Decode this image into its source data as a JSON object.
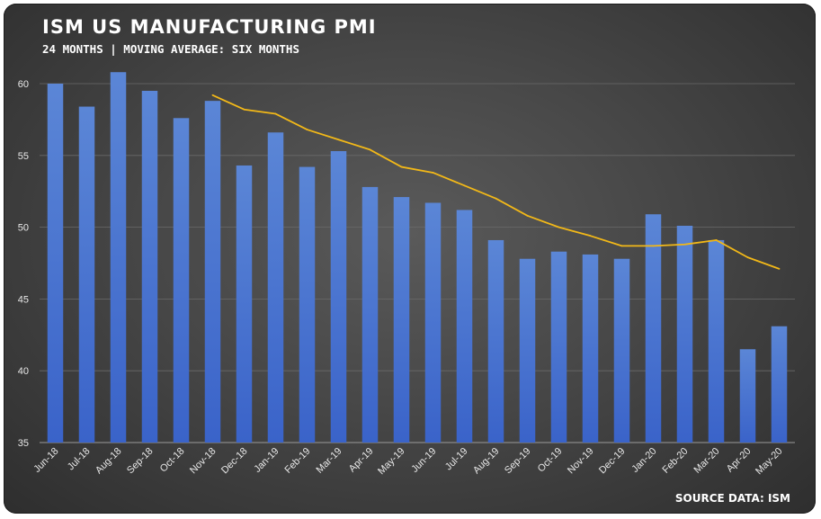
{
  "header": {
    "title": "ISM US MANUFACTURING PMI",
    "subtitle": "24 MONTHS | MOVING AVERAGE: SIX MONTHS"
  },
  "footer": {
    "source": "SOURCE DATA: ISM"
  },
  "colors": {
    "bar_top": "#5b86d6",
    "bar_bottom": "#3a63c9",
    "line": "#f2b818",
    "grid": "#6a6a6a"
  },
  "chart_data": {
    "type": "bar",
    "categories": [
      "Jun-18",
      "Jul-18",
      "Aug-18",
      "Sep-18",
      "Oct-18",
      "Nov-18",
      "Dec-18",
      "Jan-19",
      "Feb-19",
      "Mar-19",
      "Apr-19",
      "May-19",
      "Jun-19",
      "Jul-19",
      "Aug-19",
      "Sep-19",
      "Oct-19",
      "Nov-19",
      "Dec-19",
      "Jan-20",
      "Feb-20",
      "Mar-20",
      "Apr-20",
      "May-20"
    ],
    "series": [
      {
        "type": "bar",
        "values": [
          60.0,
          58.4,
          60.8,
          59.5,
          57.6,
          58.8,
          54.3,
          56.6,
          54.2,
          55.3,
          52.8,
          52.1,
          51.7,
          51.2,
          49.1,
          47.8,
          48.3,
          48.1,
          47.8,
          50.9,
          50.1,
          49.1,
          41.5,
          43.1
        ]
      },
      {
        "type": "line",
        "values": [
          null,
          null,
          null,
          null,
          null,
          59.2,
          58.2,
          57.9,
          56.8,
          56.1,
          55.4,
          54.2,
          53.8,
          52.9,
          52.0,
          50.8,
          50.0,
          49.4,
          48.7,
          48.7,
          48.8,
          49.1,
          47.9,
          47.1
        ]
      }
    ],
    "ylim": [
      35,
      60
    ],
    "yticks": [
      35,
      40,
      45,
      50,
      55,
      60
    ],
    "grid": true,
    "legend": "none"
  }
}
